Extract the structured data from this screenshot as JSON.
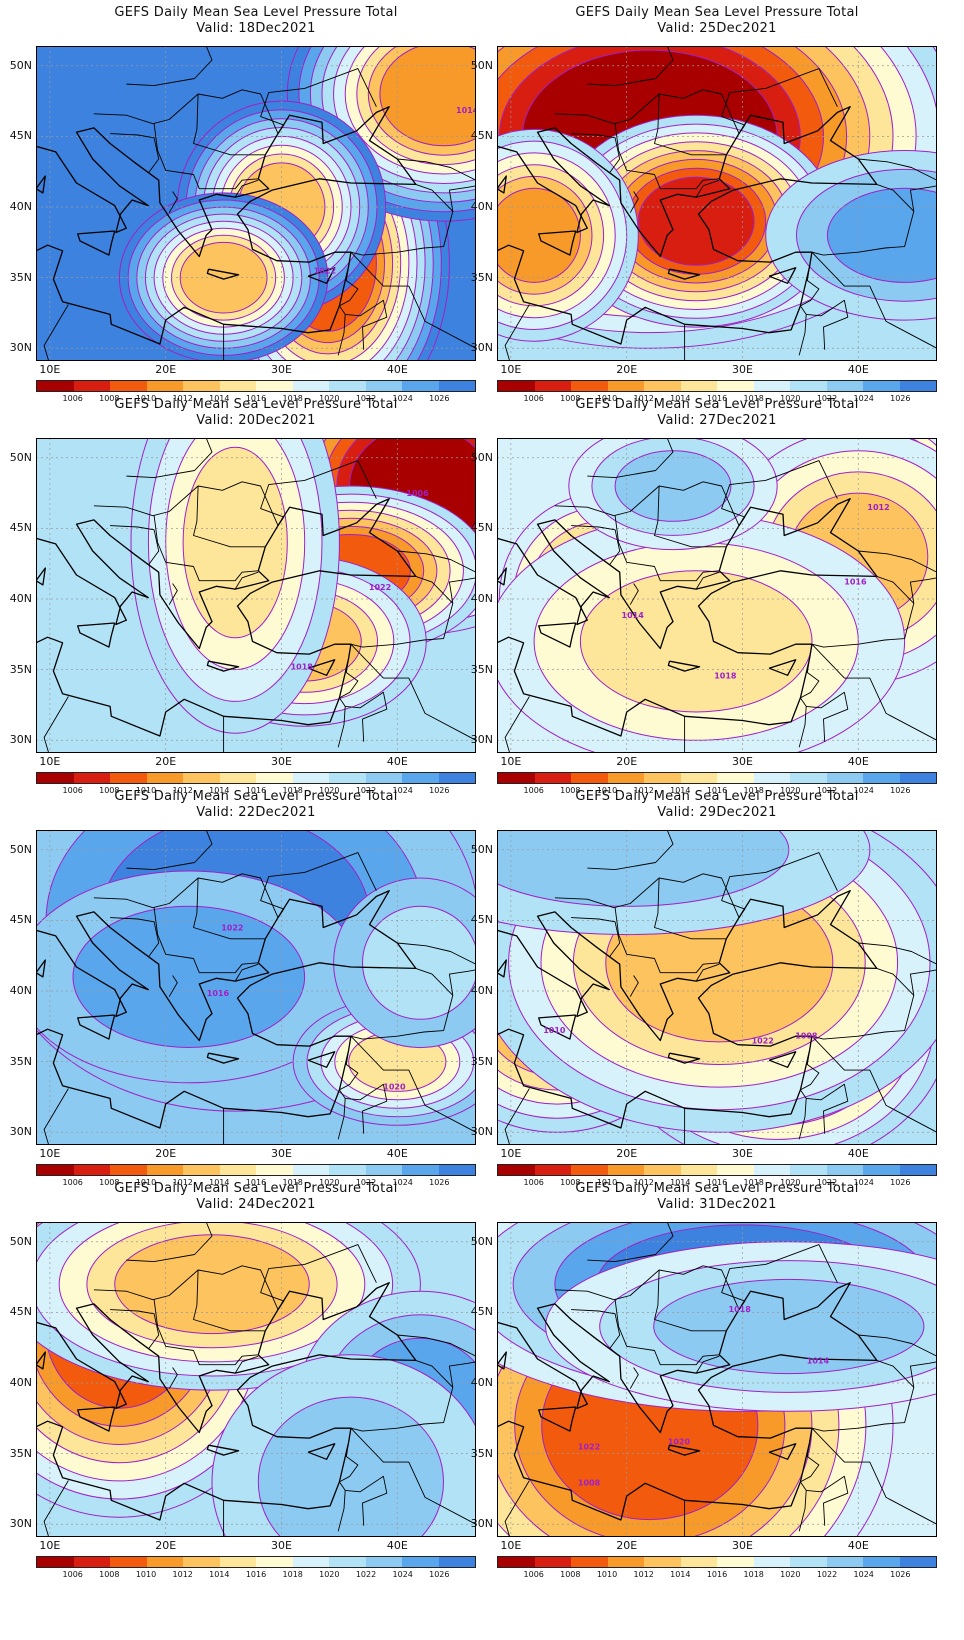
{
  "title": "GEFS Daily Mean Sea Level Pressure Total",
  "lat_labels": [
    "50N",
    "45N",
    "40N",
    "35N",
    "30N"
  ],
  "lon_labels": [
    "10E",
    "20E",
    "30E",
    "40E"
  ],
  "colorbar": {
    "labels": [
      "1006",
      "1008",
      "1010",
      "1012",
      "1014",
      "1016",
      "1018",
      "1020",
      "1022",
      "1024",
      "1026"
    ],
    "colors": [
      "#a80000",
      "#d81e10",
      "#f25a0e",
      "#f79a2a",
      "#fcc35e",
      "#fde69a",
      "#fefad2",
      "#d8f2fb",
      "#b2e2f6",
      "#8ccaf2",
      "#5aa6ec",
      "#3d82de"
    ]
  },
  "contour_color": "#a020c8",
  "panels": [
    {
      "valid": "Valid: 18Dec2021",
      "contour_labels": [
        "1022",
        "1014"
      ]
    },
    {
      "valid": "Valid: 25Dec2021",
      "contour_labels": []
    },
    {
      "valid": "Valid: 20Dec2021",
      "contour_labels": [
        "1006",
        "1022",
        "1018"
      ]
    },
    {
      "valid": "Valid: 27Dec2021",
      "contour_labels": [
        "1012",
        "1014",
        "1016",
        "1018"
      ]
    },
    {
      "valid": "Valid: 22Dec2021",
      "contour_labels": [
        "1022",
        "1016",
        "1020"
      ]
    },
    {
      "valid": "Valid: 29Dec2021",
      "contour_labels": [
        "1022",
        "1008",
        "1010"
      ]
    },
    {
      "valid": "Valid: 24Dec2021",
      "contour_labels": []
    },
    {
      "valid": "Valid: 31Dec2021",
      "contour_labels": [
        "1022",
        "1020",
        "1018",
        "1014",
        "1008"
      ]
    }
  ]
}
